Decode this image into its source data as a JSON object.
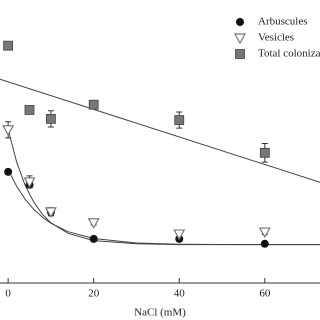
{
  "chart_data": {
    "type": "scatter",
    "x_label": "NaCl (mM)",
    "xlim": [
      -1.9,
      72.9
    ],
    "xticks": [
      0,
      20,
      40,
      60
    ],
    "ylim": [
      0,
      70
    ],
    "legend": "top-right",
    "series": [
      {
        "name": "Arbuscules",
        "marker": "circle",
        "color": "#111111",
        "x": [
          0,
          5,
          10,
          20,
          40,
          60
        ],
        "values": [
          27.5,
          24.3,
          17.6,
          10.9,
          10.9,
          9.7
        ],
        "errors": [
          0.6,
          0.8,
          0.8,
          0.6,
          0.6,
          0.5
        ]
      },
      {
        "name": "Vesicles",
        "marker": "triangle",
        "color": "#ffffff",
        "x": [
          0,
          5,
          10,
          20,
          40,
          60
        ],
        "values": [
          37.9,
          25.0,
          17.6,
          14.9,
          12.1,
          12.6
        ],
        "errors": [
          2.0,
          1.5,
          1.0,
          0.6,
          0.6,
          0.6
        ]
      },
      {
        "name": "Total colonization",
        "marker": "square",
        "color": "#777777",
        "x": [
          0,
          5,
          10,
          20,
          40,
          60
        ],
        "values": [
          58.7,
          42.8,
          40.6,
          44.1,
          40.3,
          32.2
        ],
        "errors": [
          0.6,
          0.6,
          2.0,
          0.6,
          2.0,
          2.3
        ]
      }
    ],
    "fit_lines": [
      {
        "x": [
          0,
          2,
          4,
          6,
          8,
          10,
          14,
          20,
          30,
          40,
          55,
          72.9
        ],
        "values": [
          28.0,
          23.9,
          20.7,
          18.2,
          16.3,
          14.8,
          12.7,
          11.0,
          9.9,
          9.6,
          9.5,
          9.5
        ]
      },
      {
        "x": [
          0,
          2,
          4,
          6,
          8,
          10,
          14,
          20,
          30,
          40,
          55,
          72.9
        ],
        "values": [
          38.0,
          29.9,
          24.1,
          20.0,
          17.0,
          14.9,
          12.3,
          10.5,
          9.7,
          9.5,
          9.5,
          9.5
        ]
      },
      {
        "x": [
          -1.9,
          72.9
        ],
        "values": [
          50.4,
          24.9
        ]
      }
    ]
  }
}
